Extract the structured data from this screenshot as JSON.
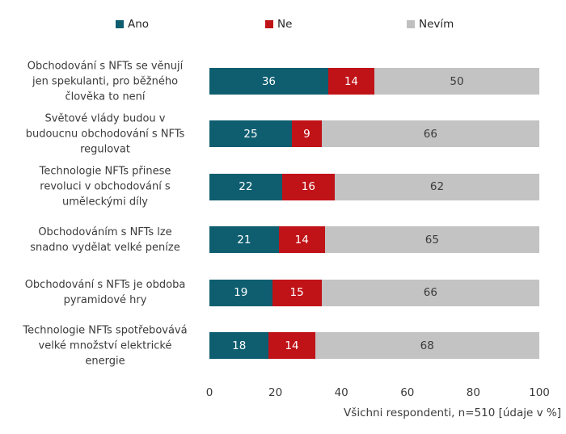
{
  "legend": {
    "items": [
      {
        "label": "Ano",
        "color": "#0E5E70"
      },
      {
        "label": "Ne",
        "color": "#C01318"
      },
      {
        "label": "Nevím",
        "color": "#C0C0C0"
      }
    ]
  },
  "chart_data": {
    "type": "bar",
    "orientation": "horizontal",
    "stacked": true,
    "grid": false,
    "legend_position": "top",
    "xlim": [
      0,
      100
    ],
    "x_ticks": [
      0,
      20,
      40,
      60,
      80,
      100
    ],
    "unit": "%",
    "categories": [
      "Obchodování s NFTs se věnují jen spekulanti, pro běžného člověka to není",
      "Světové vlády budou v budoucnu obchodování s NFTs regulovat",
      "Technologie NFTs přinese revoluci v obchodování s uměleckými díly",
      "Obchodováním s NFTs lze snadno vydělat velké peníze",
      "Obchodování s NFTs je obdoba pyramidové hry",
      "Technologie NFTs spotřebovává velké množství elektrické energie"
    ],
    "label_lines": [
      [
        "Obchodování s NFTs se věnují",
        "jen spekulanti, pro běžného",
        "člověka to není"
      ],
      [
        "Světové vlády budou v",
        "budoucnu obchodování s NFTs",
        "regulovat"
      ],
      [
        "Technologie NFTs přinese",
        "revoluci v obchodování s",
        "uměleckými díly"
      ],
      [
        "Obchodováním s NFTs lze",
        "snadno vydělat velké peníze"
      ],
      [
        "Obchodování s NFTs je obdoba",
        "pyramidové hry"
      ],
      [
        "Technologie NFTs spotřebovává",
        "velké množství elektrické",
        "energie"
      ]
    ],
    "series": [
      {
        "name": "Ano",
        "color": "#0E5E70",
        "value_text_color": "#FFFFFF",
        "values": [
          36,
          25,
          22,
          21,
          19,
          18
        ]
      },
      {
        "name": "Ne",
        "color": "#C01318",
        "value_text_color": "#FFFFFF",
        "values": [
          14,
          9,
          16,
          14,
          15,
          14
        ]
      },
      {
        "name": "Nevím",
        "color": "#C3C3C3",
        "value_text_color": "#3B3B3B",
        "values": [
          50,
          66,
          62,
          65,
          66,
          68
        ]
      }
    ],
    "footnote": "Všichni respondenti, n=510 [údaje v %]"
  }
}
